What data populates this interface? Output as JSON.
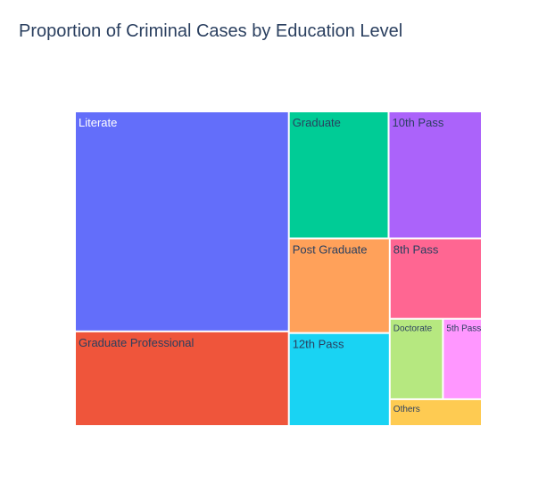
{
  "chart_data": {
    "type": "treemap",
    "title": "Proportion of Criminal Cases by Education Level",
    "labels": [
      "Literate",
      "Graduate Professional",
      "Graduate",
      "10th Pass",
      "Post Graduate",
      "8th Pass",
      "12th Pass",
      "Doctorate",
      "5th Pass",
      "Others"
    ],
    "values": [
      28.6,
      12.3,
      7.7,
      7.2,
      5.8,
      4.5,
      5.7,
      2.6,
      1.9,
      1.5
    ],
    "colors": [
      "#636efa",
      "#ef553b",
      "#00cc96",
      "#ab63fa",
      "#ffa15a",
      "#ff6692",
      "#19d3f3",
      "#b6e880",
      "#ff97ff",
      "#fecb52"
    ],
    "text_colors": [
      "#ffffff",
      "#2a3f5f",
      "#2a3f5f",
      "#2a3f5f",
      "#2a3f5f",
      "#2a3f5f",
      "#2a3f5f",
      "#2a3f5f",
      "#2a3f5f",
      "#2a3f5f"
    ]
  }
}
